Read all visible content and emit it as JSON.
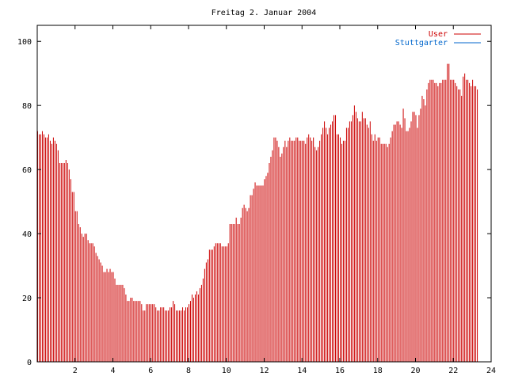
{
  "chart_data": {
    "type": "bar",
    "title": "Freitag 2. Januar 2004",
    "xlabel": "",
    "ylabel": "",
    "xlim": [
      0,
      24
    ],
    "ylim": [
      0,
      105
    ],
    "xticks": [
      2,
      4,
      6,
      8,
      10,
      12,
      14,
      16,
      18,
      20,
      22,
      24
    ],
    "yticks": [
      0,
      20,
      40,
      60,
      80,
      100
    ],
    "grid": false,
    "legend_position": "top-right",
    "series": [
      {
        "name": "User",
        "color": "#cc0000",
        "x_step_hours": 0.08333,
        "values": [
          72,
          71,
          71,
          72,
          71,
          70,
          70,
          71,
          69,
          68,
          70,
          69,
          68,
          66,
          62,
          62,
          62,
          62,
          63,
          62,
          60,
          57,
          53,
          53,
          47,
          47,
          43,
          42,
          40,
          39,
          40,
          40,
          38,
          37,
          37,
          37,
          36,
          34,
          33,
          32,
          31,
          30,
          28,
          28,
          29,
          28,
          29,
          28,
          28,
          26,
          24,
          24,
          24,
          24,
          24,
          23,
          21,
          19,
          19,
          20,
          20,
          19,
          19,
          19,
          19,
          19,
          18,
          16,
          16,
          18,
          18,
          18,
          18,
          18,
          18,
          17,
          16,
          16,
          17,
          17,
          17,
          16,
          16,
          16,
          17,
          17,
          19,
          18,
          16,
          16,
          16,
          16,
          17,
          16,
          17,
          17,
          18,
          19,
          21,
          20,
          21,
          22,
          21,
          23,
          24,
          26,
          29,
          31,
          32,
          35,
          35,
          35,
          36,
          37,
          37,
          37,
          37,
          36,
          36,
          36,
          36,
          37,
          43,
          43,
          43,
          43,
          45,
          43,
          43,
          45,
          48,
          49,
          48,
          47,
          48,
          52,
          52,
          54,
          56,
          55,
          55,
          55,
          55,
          55,
          57,
          58,
          59,
          62,
          64,
          66,
          70,
          70,
          69,
          67,
          64,
          65,
          67,
          69,
          67,
          69,
          70,
          69,
          69,
          69,
          70,
          70,
          69,
          69,
          69,
          69,
          68,
          70,
          71,
          70,
          69,
          70,
          67,
          66,
          67,
          69,
          71,
          73,
          75,
          73,
          71,
          73,
          74,
          75,
          77,
          77,
          71,
          71,
          70,
          68,
          69,
          69,
          73,
          73,
          75,
          75,
          77,
          80,
          78,
          76,
          75,
          75,
          78,
          76,
          76,
          74,
          73,
          75,
          71,
          69,
          71,
          69,
          70,
          70,
          68,
          68,
          68,
          68,
          67,
          68,
          70,
          72,
          74,
          74,
          75,
          75,
          74,
          73,
          79,
          76,
          72,
          72,
          73,
          75,
          78,
          78,
          77,
          73,
          77,
          79,
          83,
          82,
          80,
          85,
          87,
          88,
          88,
          88,
          87,
          87,
          86,
          87,
          87,
          88,
          88,
          88,
          93,
          93,
          88,
          88,
          88,
          87,
          86,
          85,
          85,
          83,
          89,
          90,
          88,
          88,
          87,
          86,
          88,
          86,
          86,
          85
        ]
      },
      {
        "name": "Stuttgarter",
        "color": "#0066cc",
        "x_step_hours": 0.08333,
        "values": [
          0,
          0,
          0,
          0,
          0,
          0,
          0,
          0,
          0,
          0,
          0,
          0,
          0,
          0,
          0,
          0,
          0,
          0,
          0,
          0,
          0,
          0,
          0,
          0,
          0,
          0,
          0,
          0,
          0,
          0,
          0,
          0,
          0,
          0,
          0,
          0,
          0,
          0,
          0,
          0,
          0,
          0,
          0,
          0,
          0,
          0,
          0,
          0,
          0,
          0,
          0,
          0,
          0,
          0,
          0,
          0,
          0,
          0,
          0,
          0,
          0,
          0,
          0,
          0,
          0,
          0,
          0,
          0,
          0,
          0,
          0,
          0,
          0,
          0,
          0,
          0,
          0,
          0,
          0,
          0,
          0,
          0,
          0,
          0,
          0,
          0,
          0,
          0,
          0,
          0,
          0,
          0,
          0,
          0,
          0,
          0,
          0,
          0,
          0,
          0,
          0,
          0,
          0,
          0,
          0,
          0,
          0,
          0,
          0,
          0,
          0,
          0,
          0,
          0,
          0,
          0,
          0,
          0,
          0,
          0,
          0,
          0,
          0,
          0,
          0,
          0,
          0,
          0,
          0,
          0,
          0,
          0,
          0,
          0,
          0,
          0,
          0,
          0,
          0,
          0,
          0,
          0,
          0,
          0,
          0,
          0,
          0,
          0,
          0,
          0,
          0,
          0,
          0,
          0,
          0,
          0,
          0,
          0,
          0,
          0,
          0,
          0,
          0,
          0,
          0,
          0,
          0,
          0,
          0,
          0,
          0,
          0,
          0,
          0,
          0,
          0,
          0,
          0,
          0,
          0,
          0,
          0,
          0,
          0,
          0,
          0,
          0,
          0,
          0,
          0,
          0,
          0,
          0,
          0,
          0,
          0,
          0,
          0,
          0,
          0,
          0,
          0,
          0,
          0,
          0,
          0,
          0,
          0,
          0,
          0,
          0,
          0,
          0,
          0,
          0,
          0,
          0,
          0,
          0,
          0,
          0,
          0,
          0,
          0,
          0,
          0,
          0,
          0,
          0,
          0,
          0,
          0,
          0,
          0,
          0,
          0,
          0,
          0,
          0,
          0,
          0,
          0,
          0,
          0,
          0,
          0,
          0,
          0,
          0,
          0,
          0,
          0,
          0,
          0,
          0,
          0,
          0,
          0,
          0,
          0,
          0,
          0,
          0,
          0,
          0,
          0,
          0,
          0,
          0,
          0,
          0,
          0,
          0,
          0,
          0,
          0,
          0,
          0,
          0,
          0,
          0,
          0,
          0,
          0,
          0,
          0,
          0,
          0,
          0,
          0,
          0,
          0,
          0,
          0
        ]
      }
    ]
  }
}
